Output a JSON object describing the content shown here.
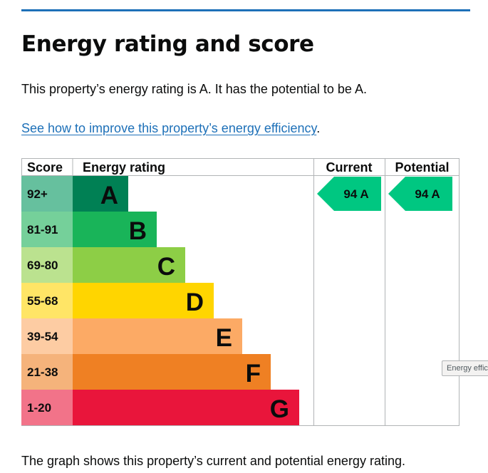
{
  "page": {
    "title": "Energy rating and score",
    "summary": "This property’s energy rating is A. It has the potential to be A.",
    "improve_link": "See how to improve this property’s energy efficiency",
    "improve_suffix": ".",
    "caption": "The graph shows this property’s current and potential energy rating.",
    "tooltip": "Energy efficiency chart"
  },
  "chart_data": {
    "type": "table",
    "headers": {
      "score": "Score",
      "rating": "Energy rating",
      "current": "Current",
      "potential": "Potential"
    },
    "bands": [
      {
        "letter": "A",
        "range": "92+",
        "color": "#008054",
        "score_bg": "#66c09e"
      },
      {
        "letter": "B",
        "range": "81-91",
        "color": "#19b459",
        "score_bg": "#75d09a"
      },
      {
        "letter": "C",
        "range": "69-80",
        "color": "#8dce46",
        "score_bg": "#bbe28f"
      },
      {
        "letter": "D",
        "range": "55-68",
        "color": "#ffd500",
        "score_bg": "#ffe566"
      },
      {
        "letter": "E",
        "range": "39-54",
        "color": "#fcaa65",
        "score_bg": "#fdcca3"
      },
      {
        "letter": "F",
        "range": "21-38",
        "color": "#ef8023",
        "score_bg": "#f5b37b"
      },
      {
        "letter": "G",
        "range": "1-20",
        "color": "#e9153b",
        "score_bg": "#f27389"
      }
    ],
    "current": {
      "score": 94,
      "letter": "A",
      "label": "94 A",
      "color": "#00c781"
    },
    "potential": {
      "score": 94,
      "letter": "A",
      "label": "94 A",
      "color": "#00c781"
    }
  }
}
